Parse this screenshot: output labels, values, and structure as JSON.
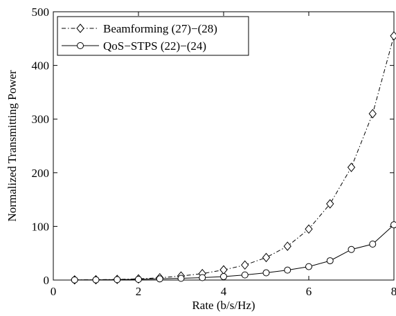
{
  "chart_data": {
    "type": "line",
    "title": "",
    "xlabel": "Rate (b/s/Hz)",
    "ylabel": "Normalized Transmitting Power",
    "xlim": [
      0,
      8
    ],
    "ylim": [
      0,
      500
    ],
    "xticks": [
      0,
      2,
      4,
      6,
      8
    ],
    "yticks": [
      0,
      100,
      200,
      300,
      400,
      500
    ],
    "grid": false,
    "legend_position": "top-left",
    "series": [
      {
        "name": "Beamforming (27)−(28)",
        "line_style": "dash-dot",
        "marker": "diamond",
        "color": "#000000",
        "x": [
          0.5,
          1,
          1.5,
          2,
          2.5,
          3,
          3.5,
          4,
          4.5,
          5,
          5.5,
          6,
          6.5,
          7,
          7.5,
          8
        ],
        "y": [
          0.3,
          0.6,
          1.2,
          2.2,
          4.2,
          7.5,
          12,
          19,
          28,
          42,
          63,
          95,
          142,
          210,
          310,
          455
        ]
      },
      {
        "name": "QoS−STPS (22)−(24)",
        "line_style": "solid",
        "marker": "circle",
        "color": "#000000",
        "x": [
          0.5,
          1,
          1.5,
          2,
          2.5,
          3,
          3.5,
          4,
          4.5,
          5,
          5.5,
          6,
          6.5,
          7,
          7.5,
          8
        ],
        "y": [
          0.2,
          0.4,
          0.8,
          1.3,
          2.2,
          3.2,
          4.5,
          6.5,
          9.5,
          13.5,
          18.5,
          25,
          36,
          57,
          67,
          103
        ]
      }
    ]
  }
}
